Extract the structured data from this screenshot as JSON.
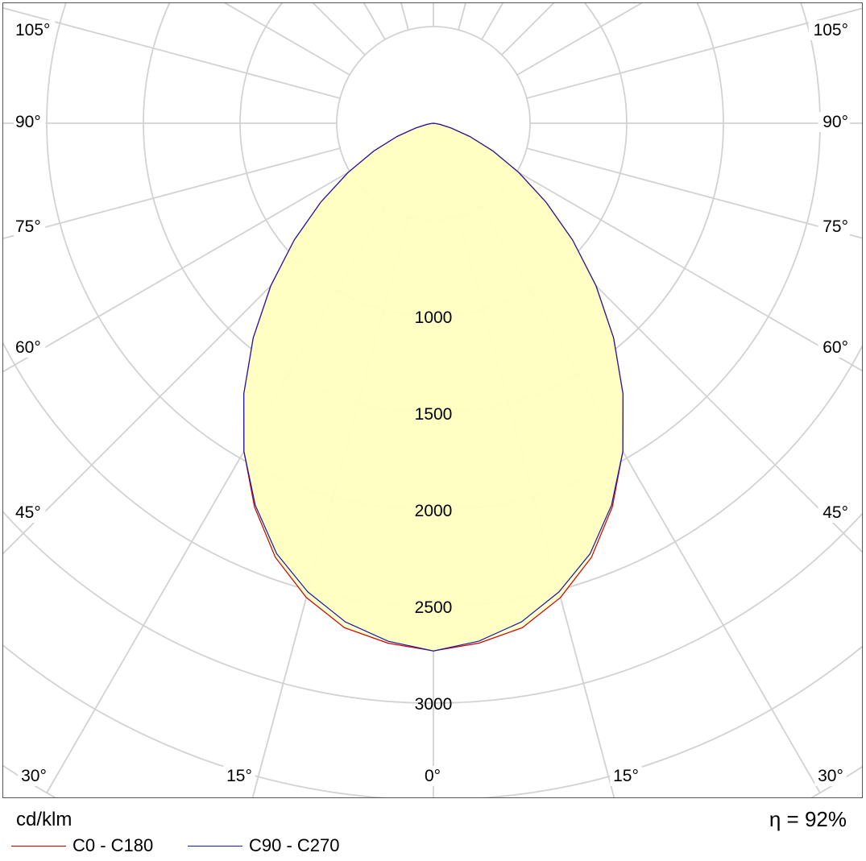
{
  "chart_data": {
    "type": "polar",
    "unit_label": "cd/klm",
    "efficiency_label": "η = 92%",
    "angle_ticks_left": [
      "105°",
      "90°",
      "75°",
      "60°",
      "45°",
      "30°",
      "15°"
    ],
    "angle_ticks_right": [
      "105°",
      "90°",
      "75°",
      "60°",
      "45°",
      "30°",
      "15°"
    ],
    "center_tick": "0°",
    "ring_values": [
      500,
      1000,
      1500,
      2000,
      2500,
      3000,
      3500,
      4000
    ],
    "ring_labels": [
      "1000",
      "1500",
      "2000",
      "2500",
      "3000"
    ],
    "fill_color": "#ffffc0",
    "series": [
      {
        "name": "C0 - C180",
        "color": "#cc0000",
        "angles": [
          0,
          5,
          10,
          15,
          20,
          25,
          30,
          35,
          40,
          45,
          50,
          55,
          60,
          65,
          70,
          75,
          80,
          85,
          90
        ],
        "values": [
          2730,
          2700,
          2650,
          2540,
          2390,
          2190,
          1960,
          1710,
          1450,
          1190,
          940,
          710,
          510,
          340,
          200,
          95,
          35,
          8,
          0
        ]
      },
      {
        "name": "C90 - C270",
        "color": "#1a1aaa",
        "angles": [
          0,
          5,
          10,
          15,
          20,
          25,
          30,
          35,
          40,
          45,
          50,
          55,
          60,
          65,
          70,
          75,
          80,
          85,
          90
        ],
        "values": [
          2730,
          2690,
          2620,
          2510,
          2370,
          2180,
          1960,
          1710,
          1450,
          1190,
          940,
          710,
          510,
          340,
          200,
          95,
          35,
          8,
          0
        ]
      }
    ]
  }
}
